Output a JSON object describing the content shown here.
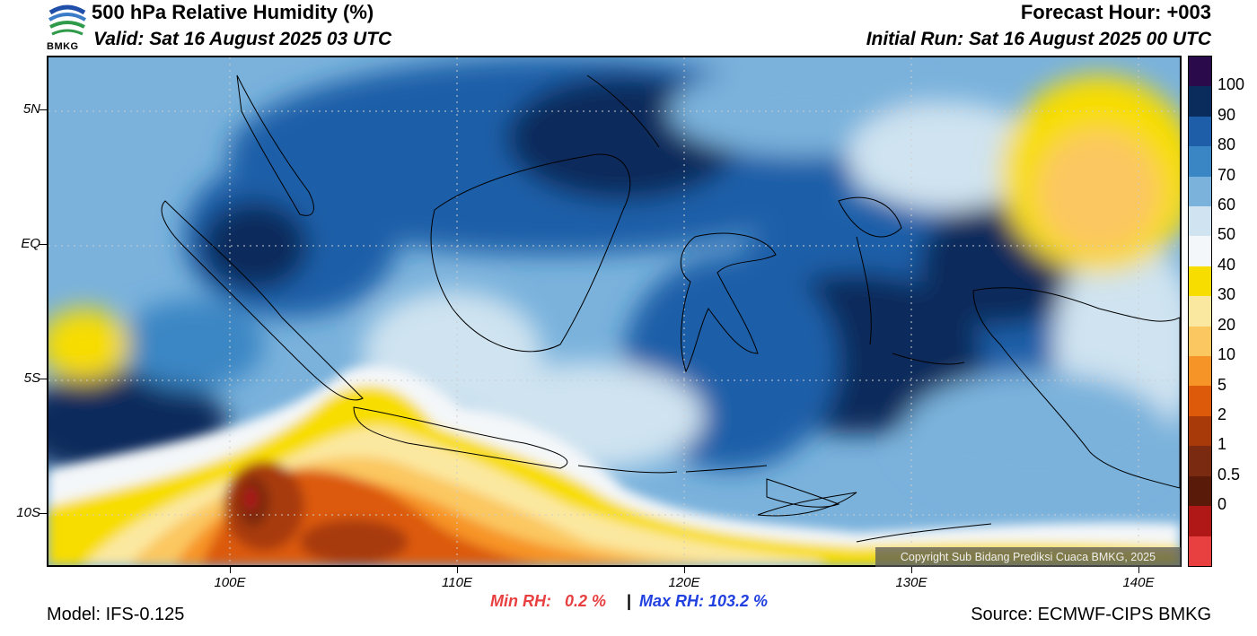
{
  "header": {
    "title": "500 hPa Relative Humidity (%)",
    "valid": "Valid: Sat 16 August 2025 03 UTC",
    "forecast_hour": "Forecast Hour: +003",
    "initial_run": "Initial Run: Sat 16 August 2025 00 UTC"
  },
  "logo": {
    "text": "BMKG",
    "colors": [
      "#1f4fa8",
      "#3a7cc8",
      "#2e9a4a"
    ]
  },
  "map": {
    "lat_labels": [
      "5N",
      "EQ",
      "5S",
      "10S"
    ],
    "lon_labels": [
      "100E",
      "110E",
      "120E",
      "130E",
      "140E"
    ],
    "copyright": "Copyright Sub Bidang Prediksi Cuaca BMKG, 2025",
    "min_rh": "Min RH:   0.2 %",
    "separator": "|",
    "max_rh": "Max RH: 103.2 %"
  },
  "colorbar": {
    "labels": [
      "100",
      "90",
      "80",
      "70",
      "60",
      "50",
      "40",
      "30",
      "20",
      "10",
      "5",
      "2",
      "1",
      "0.5",
      "0"
    ],
    "colors": [
      "#2a0a4a",
      "#0a2c5c",
      "#1e5ea8",
      "#3a86c4",
      "#7ab2dc",
      "#cfe3f0",
      "#f4f7f9",
      "#f8dd00",
      "#fbe8a0",
      "#fbc760",
      "#f79428",
      "#dc5a0a",
      "#a83a0a",
      "#7a2a10",
      "#5a1a0a",
      "#b01818",
      "#e84040"
    ]
  },
  "footer": {
    "model": "Model: IFS-0.125",
    "source": "Source: ECMWF-CIPS BMKG"
  }
}
